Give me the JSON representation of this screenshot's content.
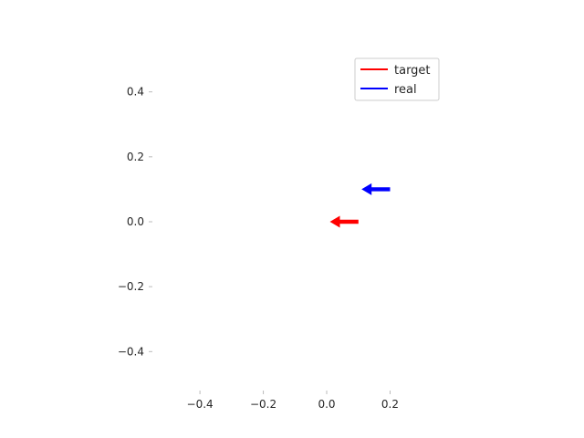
{
  "chart_data": {
    "type": "quiver",
    "title": "",
    "xlabel": "",
    "ylabel": "",
    "xlim": [
      -0.55,
      0.38
    ],
    "ylim": [
      -0.52,
      0.52
    ],
    "xticks": [
      -0.4,
      -0.2,
      0.0,
      0.2
    ],
    "yticks": [
      0.4,
      0.2,
      0.0,
      -0.2,
      -0.4
    ],
    "xtick_labels": [
      "−0.4",
      "−0.2",
      "0.0",
      "0.2"
    ],
    "ytick_labels": [
      "0.4",
      "0.2",
      "0.0",
      "−0.2",
      "−0.4"
    ],
    "grid": false,
    "legend_position": "top-right",
    "series": [
      {
        "name": "target",
        "color": "#ff0000",
        "x": 0.1,
        "y": 0.0,
        "u": -0.09,
        "v": 0.0
      },
      {
        "name": "real",
        "color": "#0000ff",
        "x": 0.2,
        "y": 0.1,
        "u": -0.09,
        "v": 0.0
      }
    ]
  }
}
